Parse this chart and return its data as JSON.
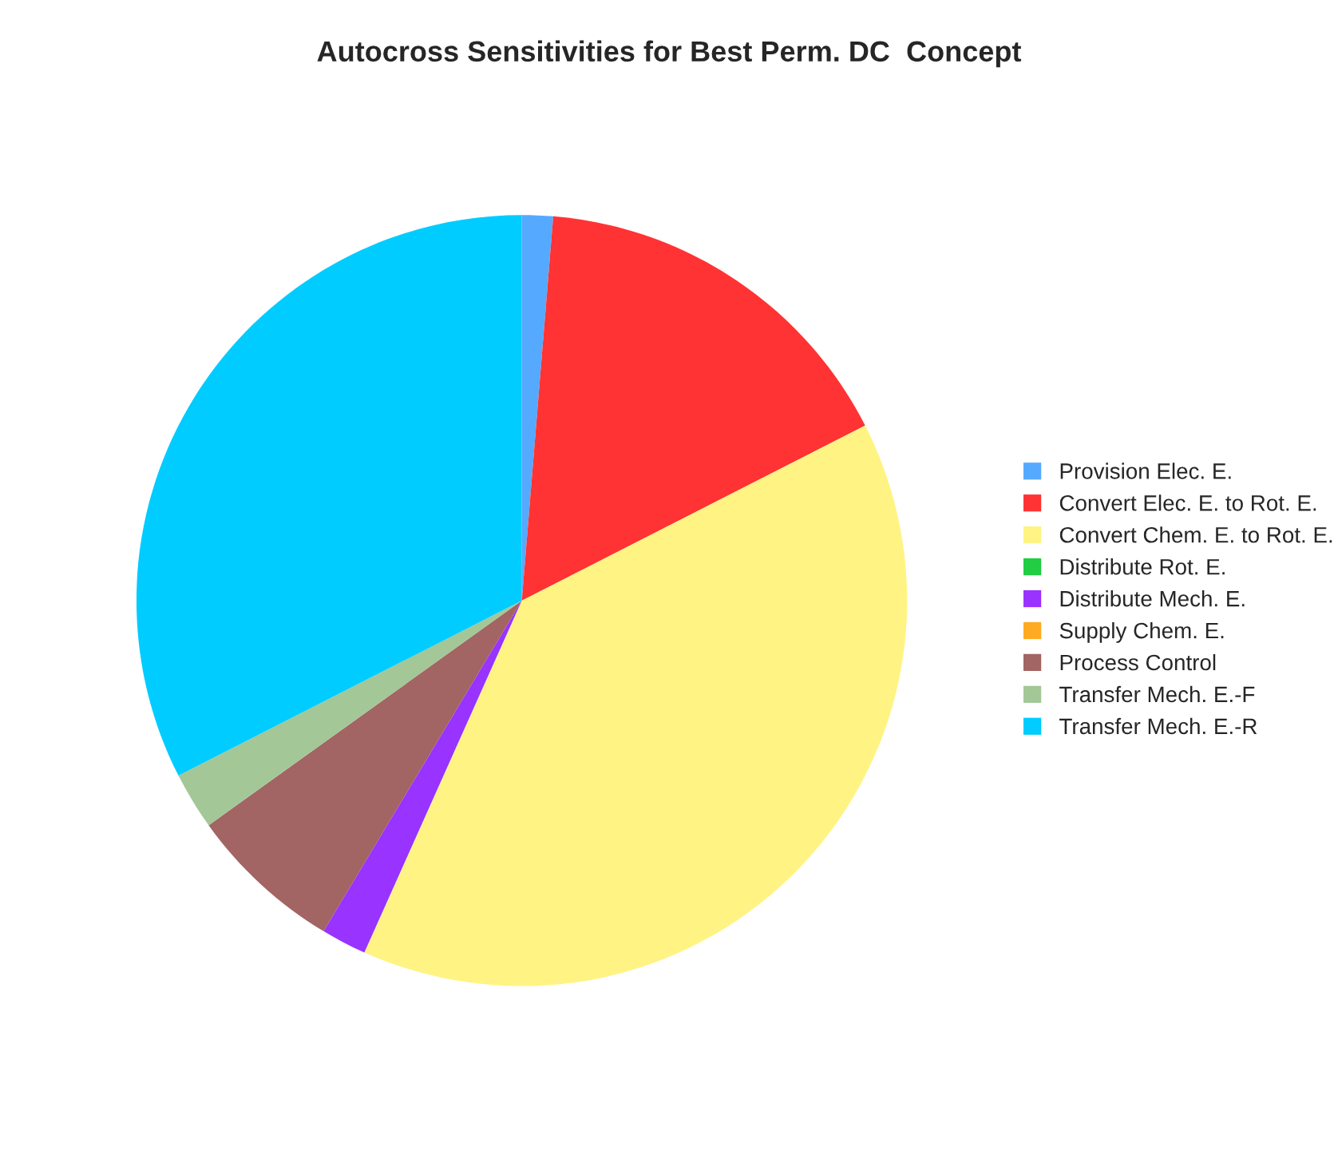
{
  "chart_data": {
    "type": "pie",
    "title": "Autocross Sensitivities for Best Perm. DC  Concept",
    "categories": [
      "Provision Elec. E.",
      "Convert Elec. E. to Rot. E.",
      "Convert Chem. E. to Rot. E.",
      "Distribute Rot. E.",
      "Distribute Mech. E.",
      "Supply Chem. E.",
      "Process Control",
      "Transfer Mech. E.-F",
      "Transfer Mech. E.-R"
    ],
    "values": [
      1.3,
      16.2,
      39.2,
      0,
      1.9,
      0,
      6.5,
      2.4,
      32.5
    ],
    "colors": [
      "#55aaff",
      "#ff3333",
      "#fff384",
      "#22cc44",
      "#9933ff",
      "#ffaa22",
      "#a36464",
      "#a3c797",
      "#00ccff"
    ],
    "legend": "right"
  }
}
